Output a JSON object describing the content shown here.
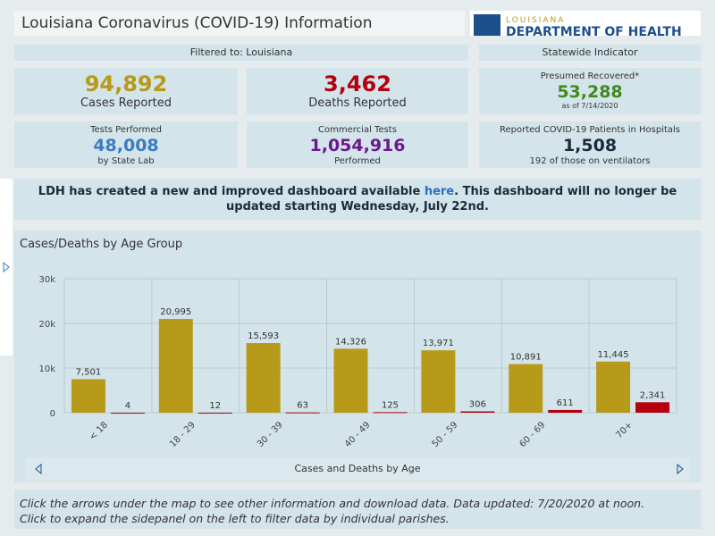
{
  "header": {
    "title": "Louisiana Coronavirus (COVID-19) Information",
    "logo_top": "LOUISIANA",
    "logo_bottom": "DEPARTMENT OF HEALTH"
  },
  "filter": "Filtered to: Louisiana",
  "statewide": "Statewide Indicator",
  "kpis": [
    {
      "value": "94,892",
      "label": "Cases Reported"
    },
    {
      "value": "3,462",
      "label": "Deaths Reported"
    },
    {
      "title": "Presumed Recovered*",
      "value": "53,288",
      "note": "as of 7/14/2020"
    },
    {
      "title": "Tests Performed",
      "value": "48,008",
      "note": "by State Lab"
    },
    {
      "title": "Commercial Tests",
      "value": "1,054,916",
      "note": "Performed"
    },
    {
      "title": "Reported COVID-19 Patients in Hospitals",
      "value": "1,508",
      "note": "192 of those on ventilators"
    }
  ],
  "banner": {
    "before": "LDH has created a new and improved dashboard available ",
    "link": "here",
    "after": ". This dashboard will no longer be updated starting Wednesday, July 22nd."
  },
  "chart_data": {
    "type": "bar",
    "title": "Cases/Deaths by Age Group",
    "x_label": "Cases and Deaths by Age",
    "categories": [
      "< 18",
      "18 - 29",
      "30 - 39",
      "40 - 49",
      "50 - 59",
      "60 - 69",
      "70+"
    ],
    "series": [
      {
        "color": "#b89a1a",
        "values": [
          7501,
          20995,
          15593,
          14326,
          13971,
          10891,
          11445
        ],
        "value_labels": [
          "7,501",
          "20,995",
          "15,593",
          "14,326",
          "13,971",
          "10,891",
          "11,445"
        ]
      },
      {
        "color": "#b3000c",
        "values": [
          4,
          12,
          63,
          125,
          306,
          611,
          2341
        ],
        "value_labels": [
          "4",
          "12",
          "63",
          "125",
          "306",
          "611",
          "2,341"
        ]
      }
    ],
    "ylim": [
      0,
      30000
    ],
    "yticks": [
      0,
      {
        "value": 10000,
        "label": "10k"
      },
      {
        "value": 20000,
        "label": "20k"
      },
      {
        "value": 30000,
        "label": "30k"
      }
    ],
    "grid": true
  },
  "footer": [
    "Click the arrows under the map to see other information and download data. Data updated: 7/20/2020 at noon.",
    "Click to expand the sidepanel on the left to filter data by individual parishes."
  ]
}
